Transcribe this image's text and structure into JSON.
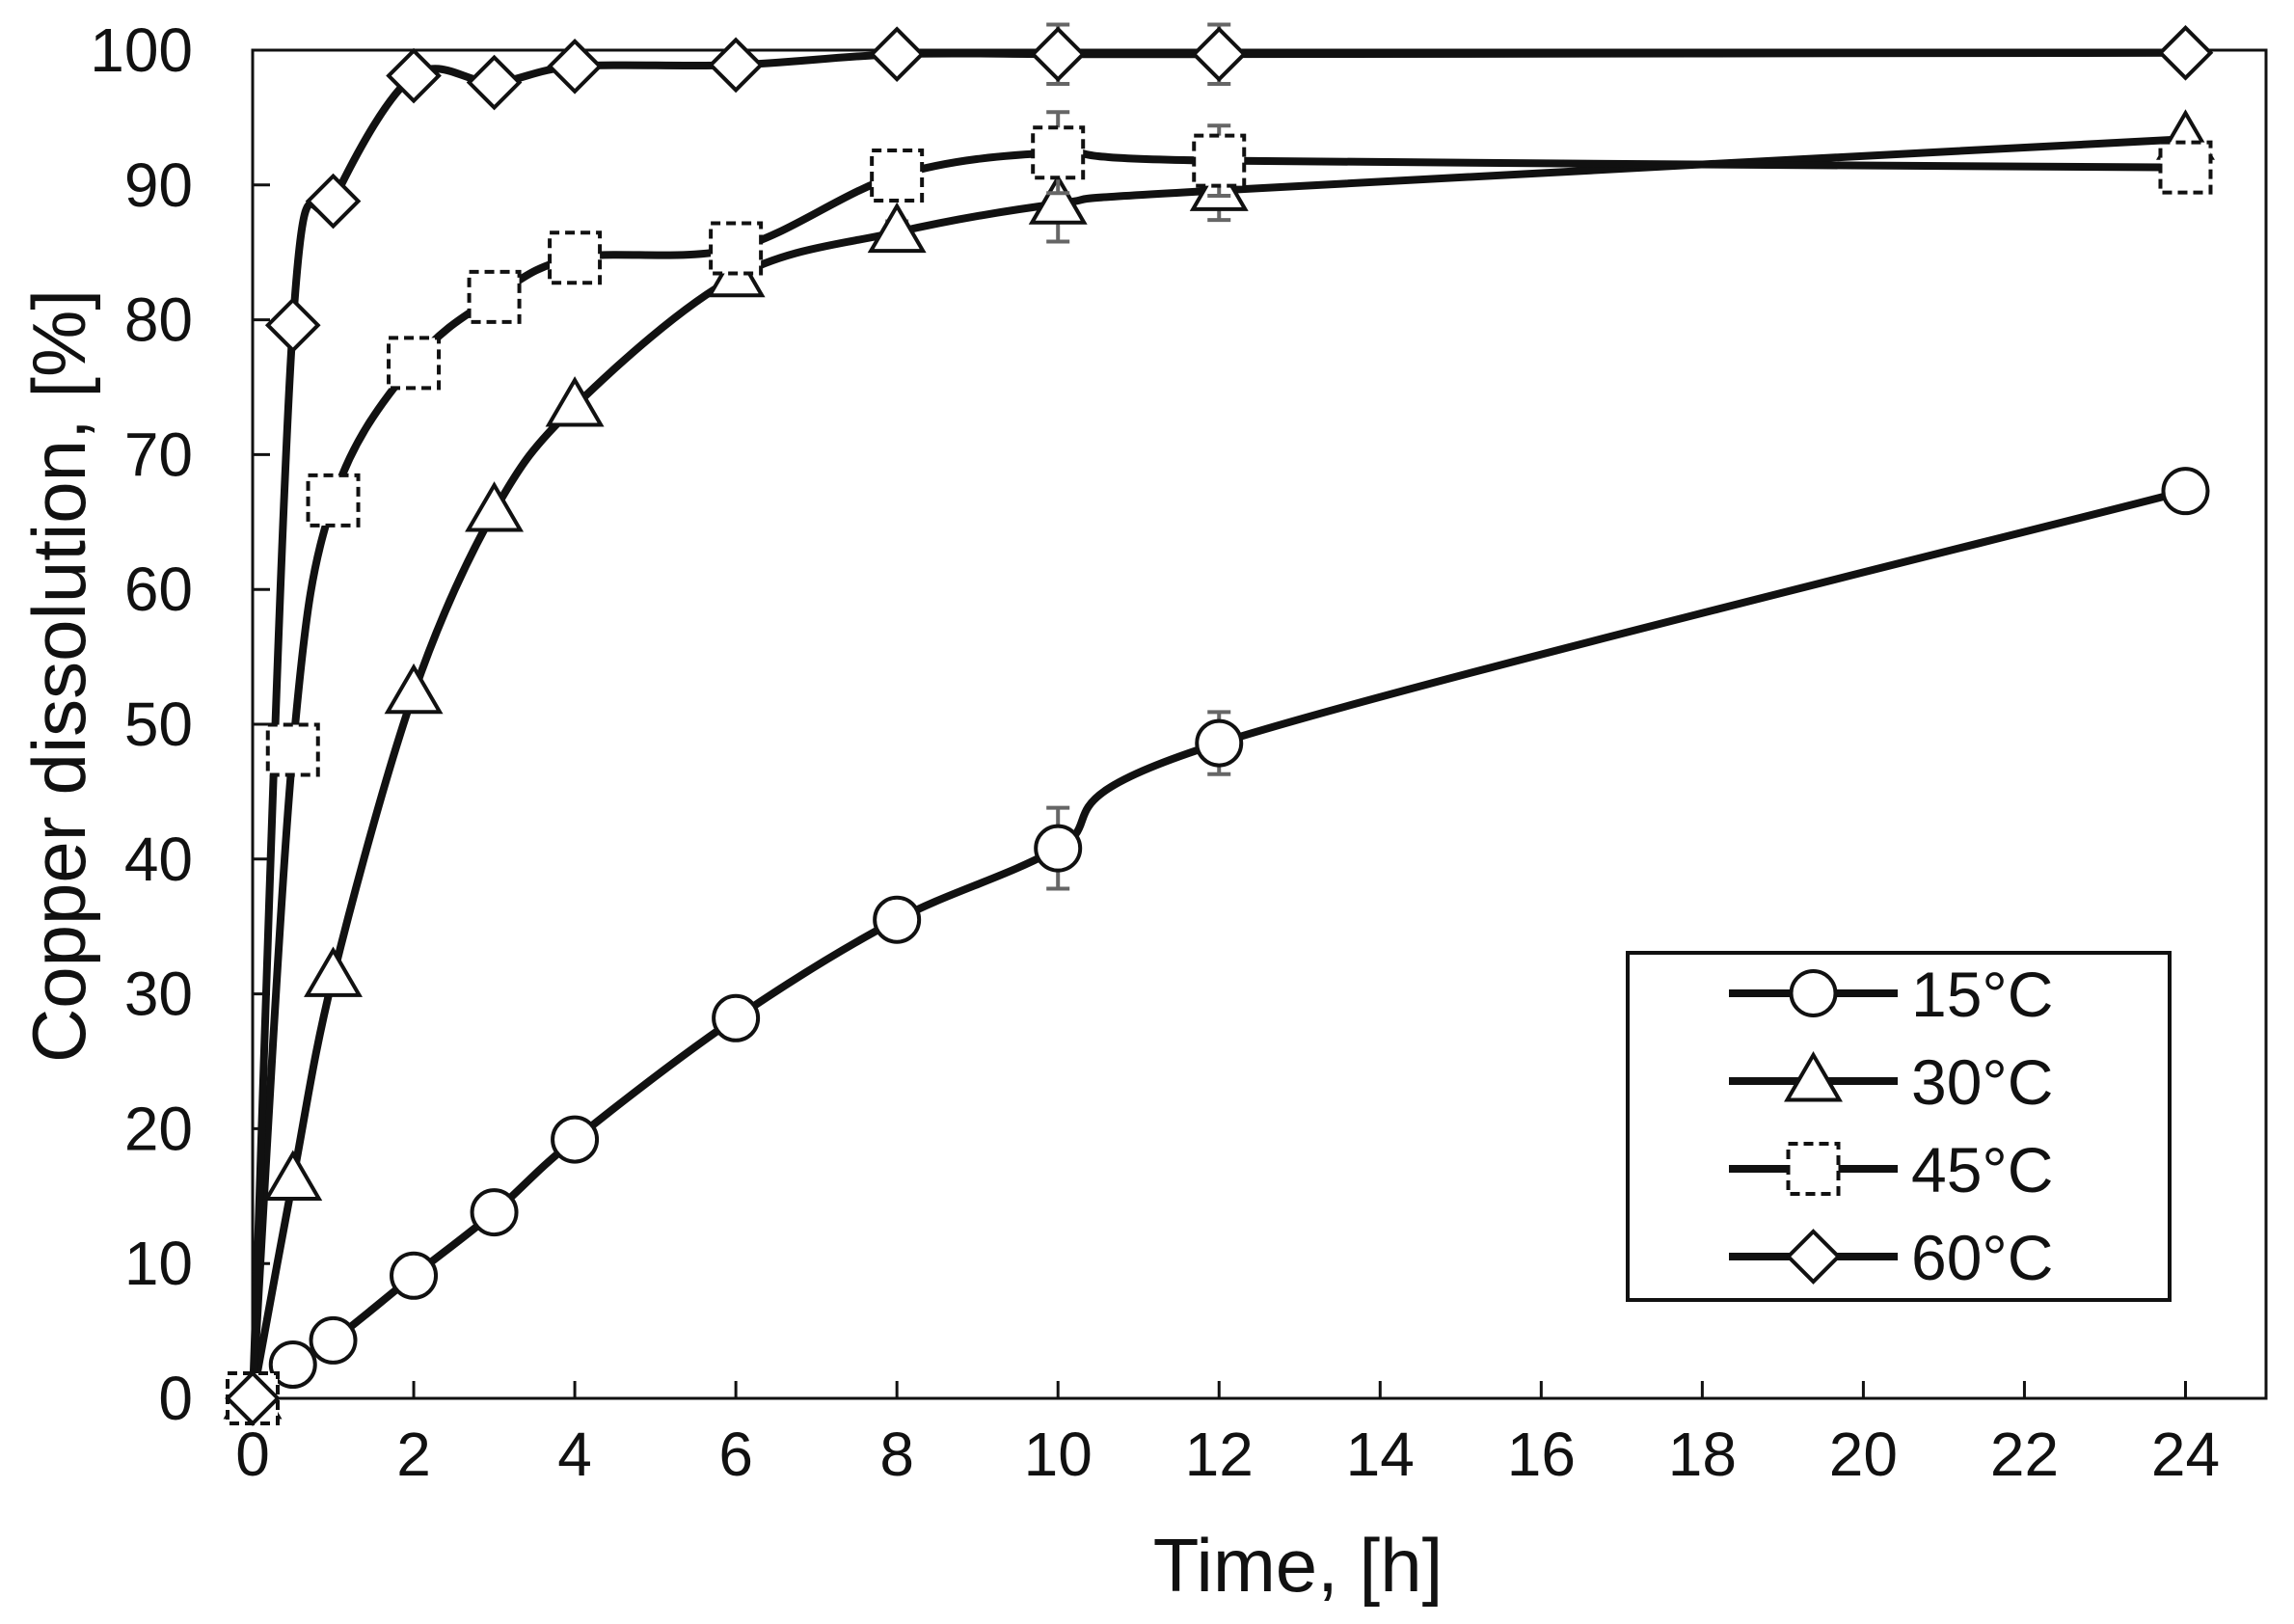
{
  "chart_data": {
    "type": "line",
    "title": "",
    "xlabel": "Time, [h]",
    "ylabel": "Copper dissolution, [%]",
    "xlim": [
      0,
      25
    ],
    "ylim": [
      0,
      100
    ],
    "x_ticks": [
      0,
      2,
      4,
      6,
      8,
      10,
      12,
      14,
      16,
      18,
      20,
      22,
      24
    ],
    "y_ticks": [
      0,
      10,
      20,
      30,
      40,
      50,
      60,
      70,
      80,
      90,
      100
    ],
    "grid": false,
    "legend_position": "bottom-right",
    "line_color": "#111111",
    "errorbar_color": "#666666",
    "series": [
      {
        "name": "15°C",
        "marker": "circle",
        "x": [
          0,
          0.5,
          1,
          2,
          3,
          4,
          6,
          8,
          10,
          12,
          24
        ],
        "y": [
          0,
          2.5,
          4.3,
          9.1,
          13.8,
          19.2,
          28.2,
          35.5,
          40.8,
          48.6,
          67.3
        ],
        "err": [
          0,
          0.3,
          0.3,
          0.4,
          0.5,
          0.6,
          0.5,
          0.8,
          3.0,
          2.3,
          0.6
        ]
      },
      {
        "name": "30°C",
        "marker": "triangle",
        "x": [
          0,
          0.5,
          1,
          2,
          3,
          4,
          6,
          8,
          10,
          12,
          24
        ],
        "y": [
          0,
          16.2,
          31.3,
          52.3,
          65.8,
          73.6,
          83.2,
          86.5,
          88.6,
          89.6,
          93.4
        ],
        "err": [
          0,
          0.3,
          0.3,
          0.4,
          0.5,
          0.5,
          0.6,
          0.8,
          2.8,
          2.2,
          0.6
        ]
      },
      {
        "name": "45°C",
        "marker": "dashed-square",
        "x": [
          0,
          0.5,
          1,
          2,
          3,
          4,
          6,
          8,
          10,
          12,
          24
        ],
        "y": [
          0,
          48.1,
          66.6,
          76.8,
          81.7,
          84.6,
          85.3,
          90.7,
          92.4,
          91.8,
          91.3
        ],
        "err": [
          0,
          0.8,
          0.8,
          0.8,
          0.9,
          0.5,
          0.6,
          0.9,
          3.0,
          2.6,
          0.6
        ]
      },
      {
        "name": "60°C",
        "marker": "diamond",
        "x": [
          0,
          0.5,
          1,
          2,
          3,
          4,
          6,
          8,
          10,
          12,
          24
        ],
        "y": [
          0,
          79.6,
          88.8,
          98.1,
          97.6,
          98.8,
          98.9,
          99.7,
          99.7,
          99.7,
          99.8
        ],
        "err": [
          0,
          0.3,
          0.3,
          0.4,
          0.3,
          0.3,
          0.3,
          0.3,
          2.2,
          2.2,
          0.3
        ]
      }
    ]
  }
}
